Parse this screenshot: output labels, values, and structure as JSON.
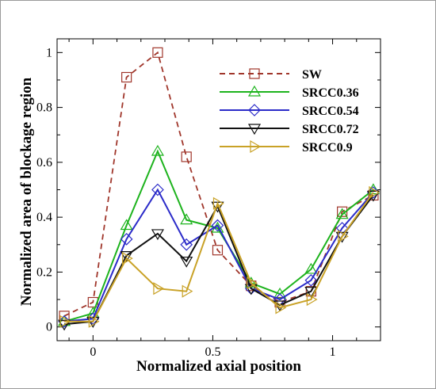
{
  "chart_data": {
    "type": "line",
    "xlabel": "Normalized axial position",
    "ylabel": "Normalized area of blockage region",
    "xlim": [
      -0.15,
      1.2
    ],
    "ylim": [
      -0.05,
      1.05
    ],
    "xticks": [
      0,
      0.5,
      1
    ],
    "xtick_labels": [
      "0",
      "0.5",
      "1"
    ],
    "yticks": [
      0,
      0.2,
      0.4,
      0.6,
      0.8,
      1
    ],
    "ytick_labels": [
      "0",
      "0.2",
      "0.4",
      "0.6",
      "0.8",
      "1"
    ],
    "grid": false,
    "legend_position": "top-right",
    "series": [
      {
        "name": "SW",
        "color": "#a0362b",
        "line_style": "dashed",
        "marker": "square",
        "x": [
          -0.12,
          0.0,
          0.14,
          0.27,
          0.39,
          0.52,
          0.66,
          0.78,
          0.91,
          1.04,
          1.17
        ],
        "y": [
          0.04,
          0.09,
          0.91,
          1.0,
          0.62,
          0.28,
          0.15,
          0.09,
          0.13,
          0.42,
          0.48
        ]
      },
      {
        "name": "SRCC0.36",
        "color": "#1db31d",
        "line_style": "solid",
        "marker": "triangle-up",
        "x": [
          -0.12,
          0.0,
          0.14,
          0.27,
          0.39,
          0.52,
          0.66,
          0.78,
          0.91,
          1.04,
          1.17
        ],
        "y": [
          0.02,
          0.05,
          0.37,
          0.64,
          0.39,
          0.36,
          0.16,
          0.12,
          0.21,
          0.41,
          0.5
        ]
      },
      {
        "name": "SRCC0.54",
        "color": "#2b2bc9",
        "line_style": "solid",
        "marker": "diamond",
        "x": [
          -0.12,
          0.0,
          0.14,
          0.27,
          0.39,
          0.52,
          0.66,
          0.78,
          0.91,
          1.04,
          1.17
        ],
        "y": [
          0.02,
          0.03,
          0.32,
          0.5,
          0.3,
          0.37,
          0.14,
          0.1,
          0.17,
          0.36,
          0.49
        ]
      },
      {
        "name": "SRCC0.72",
        "color": "#111111",
        "line_style": "solid",
        "marker": "triangle-down",
        "x": [
          -0.12,
          0.0,
          0.14,
          0.27,
          0.39,
          0.52,
          0.66,
          0.78,
          0.91,
          1.04,
          1.17
        ],
        "y": [
          0.01,
          0.02,
          0.26,
          0.34,
          0.24,
          0.44,
          0.14,
          0.08,
          0.13,
          0.33,
          0.48
        ]
      },
      {
        "name": "SRCC0.9",
        "color": "#c9a227",
        "line_style": "solid",
        "marker": "triangle-right",
        "x": [
          -0.12,
          0.0,
          0.14,
          0.27,
          0.39,
          0.52,
          0.66,
          0.78,
          0.91,
          1.04,
          1.17
        ],
        "y": [
          0.02,
          0.02,
          0.25,
          0.14,
          0.13,
          0.45,
          0.16,
          0.07,
          0.1,
          0.33,
          0.49
        ]
      }
    ]
  }
}
